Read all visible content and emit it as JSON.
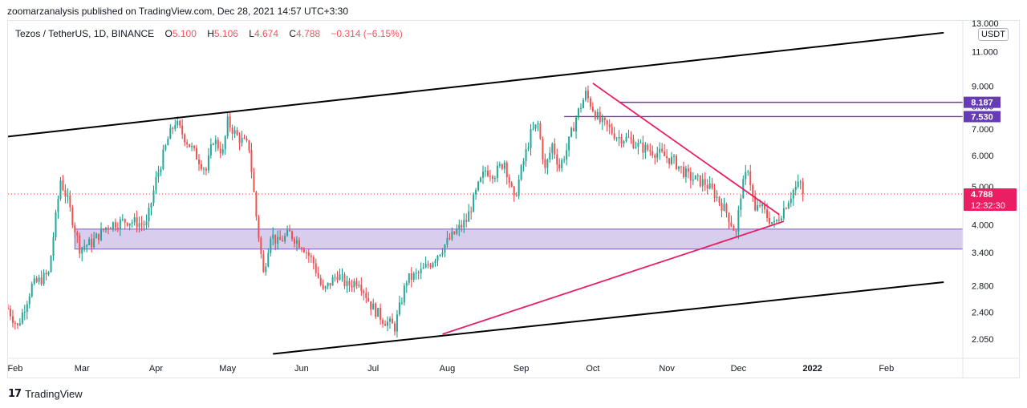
{
  "publisher": "zoomarzanalysis published on TradingView.com, Dec 28, 2021 14:57 UTC+3:30",
  "legend": {
    "symbol": "Tezos / TetherUS, 1D, BINANCE",
    "open_label": "O",
    "open": "5.100",
    "high_label": "H",
    "high": "5.106",
    "low_label": "L",
    "low": "4.674",
    "close_label": "C",
    "close": "4.788",
    "change": "−0.314 (−6.15%)"
  },
  "currency": "USDT",
  "brand": "TradingView",
  "colors": {
    "up": "#089981",
    "down": "#f23645",
    "up_body": "#26a69a",
    "down_body": "#ef5350",
    "trend_pink": "#e91e63",
    "channel": "#000000",
    "zone_fill": "#d1c4e9",
    "zone_border": "#7e57c2",
    "level_line": "#673ab7",
    "price_label": "#e91e63"
  },
  "chart_data": {
    "type": "candlestick",
    "title": "Tezos / TetherUS, 1D, BINANCE",
    "scale": "log",
    "ylim": [
      1.88,
      13.0
    ],
    "y_ticks": [
      "13.000",
      "11.000",
      "9.000",
      "8.000",
      "7.000",
      "6.000",
      "5.000",
      "4.000",
      "3.400",
      "2.800",
      "2.400",
      "2.050"
    ],
    "y_tick_values": [
      13.0,
      11.0,
      9.0,
      8.0,
      7.0,
      6.0,
      5.0,
      4.0,
      3.4,
      2.8,
      2.4,
      2.05
    ],
    "x_ticks": [
      "Feb",
      "Mar",
      "Apr",
      "May",
      "Jun",
      "Jul",
      "Aug",
      "Sep",
      "Oct",
      "Nov",
      "Dec",
      "2022",
      "Feb"
    ],
    "x_tick_days": [
      31,
      59,
      90,
      120,
      151,
      181,
      212,
      243,
      273,
      304,
      334,
      365,
      396
    ],
    "x_range_days": [
      28,
      428
    ],
    "close_path_days": [
      28,
      32,
      38,
      45,
      50,
      53,
      58,
      63,
      70,
      78,
      86,
      90,
      95,
      98,
      106,
      111,
      114,
      118,
      120,
      124,
      129,
      132,
      135,
      138,
      141,
      146,
      152,
      156,
      160,
      166,
      170,
      175,
      180,
      185,
      190,
      195,
      200,
      205,
      210,
      215,
      220,
      225,
      228,
      232,
      236,
      240,
      243,
      247,
      250,
      253,
      256,
      259,
      262,
      266,
      270,
      273,
      276,
      279,
      283,
      288,
      293,
      300,
      307,
      313,
      320,
      324,
      329,
      333,
      335,
      338,
      341,
      343,
      346,
      349,
      353,
      357,
      360,
      361
    ],
    "close_path_values": [
      2.45,
      2.2,
      2.8,
      3.0,
      5.2,
      4.6,
      3.5,
      3.6,
      4.0,
      4.1,
      4.0,
      5.2,
      6.6,
      7.3,
      6.1,
      5.5,
      6.6,
      6.1,
      7.3,
      6.7,
      6.3,
      4.2,
      3.0,
      3.8,
      3.6,
      3.8,
      3.5,
      3.2,
      2.7,
      3.0,
      2.8,
      2.9,
      2.5,
      2.3,
      2.2,
      2.9,
      3.0,
      3.2,
      3.5,
      3.8,
      4.1,
      5.0,
      5.5,
      5.4,
      5.8,
      4.6,
      5.5,
      6.8,
      7.2,
      5.5,
      6.4,
      5.6,
      6.2,
      7.5,
      8.6,
      7.9,
      7.3,
      7.1,
      6.7,
      6.6,
      6.3,
      6.1,
      5.8,
      5.3,
      5.1,
      4.8,
      4.3,
      3.8,
      4.8,
      5.6,
      4.3,
      4.5,
      4.2,
      4.0,
      4.4,
      4.9,
      5.1,
      4.788
    ],
    "last_price": 4.788,
    "last_price_label": "4.788",
    "countdown": "12:32:30",
    "horizontal_levels": [
      {
        "label": "8.187",
        "value": 8.187,
        "start_day": 284
      },
      {
        "label": "7.530",
        "value": 7.53,
        "start_day": 261
      }
    ],
    "support_zone": {
      "from_value": 3.47,
      "to_value": 3.9,
      "start_day": 56
    },
    "trendlines": [
      {
        "name": "channel-upper",
        "d1": 28,
        "v1": 6.7,
        "d2": 420,
        "v2": 12.3
      },
      {
        "name": "channel-lower",
        "d1": 139,
        "v1": 1.88,
        "d2": 420,
        "v2": 2.86
      },
      {
        "name": "descending-resistance",
        "d1": 273,
        "v1": 9.15,
        "d2": 351,
        "v2": 4.25
      },
      {
        "name": "ascending-support",
        "d1": 210,
        "v1": 2.11,
        "d2": 353,
        "v2": 4.08
      }
    ]
  }
}
